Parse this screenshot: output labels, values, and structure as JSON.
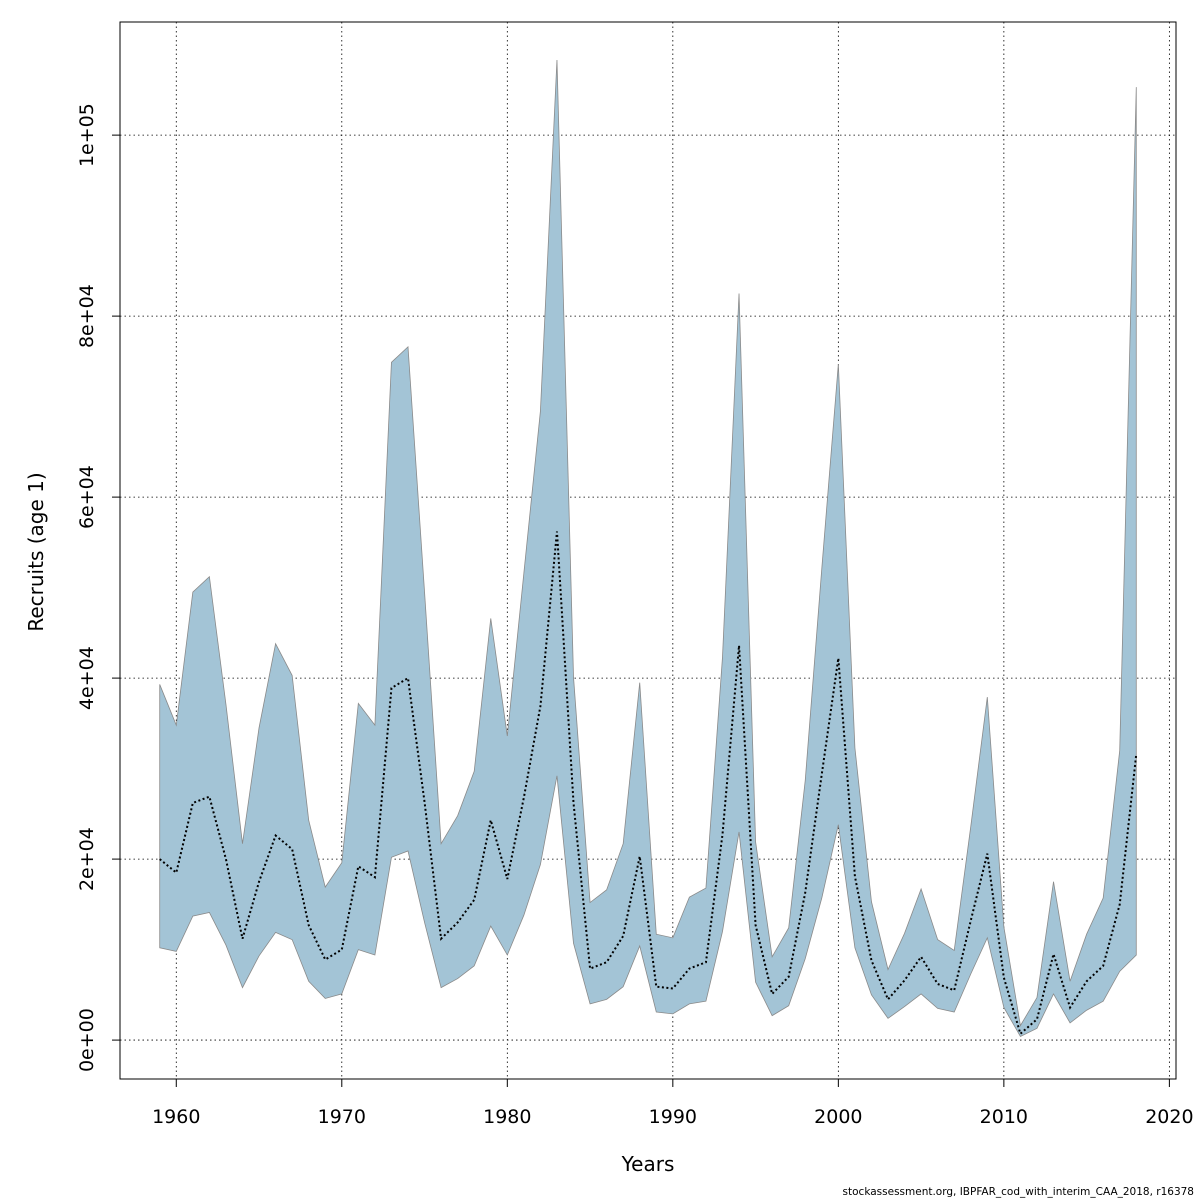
{
  "chart_data": {
    "type": "area",
    "xlabel": "Years",
    "ylabel": "Recruits (age 1)",
    "xlim": [
      1956.6,
      2020.4
    ],
    "ylim": [
      -4300,
      112500
    ],
    "x_ticks": [
      1960,
      1970,
      1980,
      1990,
      2000,
      2010,
      2020
    ],
    "x_tick_labels": [
      "1960",
      "1970",
      "1980",
      "1990",
      "2000",
      "2010",
      "2020"
    ],
    "y_ticks": [
      0,
      20000,
      40000,
      60000,
      80000,
      100000
    ],
    "y_tick_labels": [
      "0e+00",
      "2e+04",
      "4e+04",
      "6e+04",
      "8e+04",
      "1e+05"
    ],
    "grid": true,
    "band_color": "#a3c4d6",
    "line_color": "#000000",
    "x": [
      1959,
      1960,
      1961,
      1962,
      1963,
      1964,
      1965,
      1966,
      1967,
      1968,
      1969,
      1970,
      1971,
      1972,
      1973,
      1974,
      1975,
      1976,
      1977,
      1978,
      1979,
      1980,
      1981,
      1982,
      1983,
      1984,
      1985,
      1986,
      1987,
      1988,
      1989,
      1990,
      1991,
      1992,
      1993,
      1994,
      1995,
      1996,
      1997,
      1998,
      1999,
      2000,
      2001,
      2002,
      2003,
      2004,
      2005,
      2006,
      2007,
      2008,
      2009,
      2010,
      2011,
      2012,
      2013,
      2014,
      2015,
      2016,
      2017,
      2018
    ],
    "series": [
      {
        "name": "",
        "role": "estimate",
        "values": [
          20000,
          18500,
          26200,
          26900,
          20000,
          11200,
          17500,
          22600,
          21100,
          12700,
          8900,
          10000,
          19200,
          18000,
          38900,
          40000,
          26300,
          11200,
          13000,
          15500,
          24300,
          17800,
          26800,
          36900,
          56200,
          26200,
          7900,
          8600,
          11500,
          20300,
          5900,
          5700,
          7900,
          8600,
          22700,
          43600,
          12700,
          5100,
          7000,
          16300,
          29400,
          42200,
          18100,
          8800,
          4500,
          6600,
          9200,
          6200,
          5500,
          13200,
          20600,
          6900,
          700,
          2300,
          9500,
          3600,
          6500,
          8200,
          15000,
          31600
        ]
      },
      {
        "name": "",
        "role": "upper",
        "values": [
          39300,
          34800,
          49500,
          51200,
          37100,
          21700,
          34500,
          43800,
          40300,
          24300,
          16900,
          19600,
          37200,
          34800,
          74900,
          76600,
          49500,
          21700,
          24800,
          29700,
          46600,
          33600,
          51600,
          69500,
          108300,
          40100,
          15200,
          16600,
          21700,
          39500,
          11700,
          11300,
          15800,
          16800,
          42300,
          82500,
          21900,
          9200,
          12400,
          28700,
          52100,
          74700,
          32300,
          15300,
          7800,
          11800,
          16700,
          11100,
          9900,
          23600,
          37900,
          12500,
          1600,
          4700,
          17500,
          6500,
          11700,
          15700,
          32000,
          105300
        ]
      },
      {
        "name": "",
        "role": "lower",
        "values": [
          10200,
          9800,
          13700,
          14100,
          10500,
          5800,
          9300,
          11900,
          11100,
          6500,
          4600,
          5100,
          10000,
          9400,
          20200,
          20900,
          13000,
          5800,
          6800,
          8200,
          12600,
          9400,
          13800,
          19400,
          29200,
          10700,
          4000,
          4500,
          5900,
          10400,
          3100,
          2900,
          4000,
          4300,
          12000,
          23000,
          6400,
          2700,
          3800,
          9000,
          15700,
          23800,
          10200,
          5000,
          2400,
          3700,
          5100,
          3500,
          3100,
          7300,
          11300,
          3600,
          400,
          1300,
          5100,
          1900,
          3300,
          4300,
          7600,
          9400
        ]
      }
    ]
  },
  "footer": {
    "text": "stockassessment.org, IBPFAR_cod_with_interim_CAA_2018, r16378"
  }
}
